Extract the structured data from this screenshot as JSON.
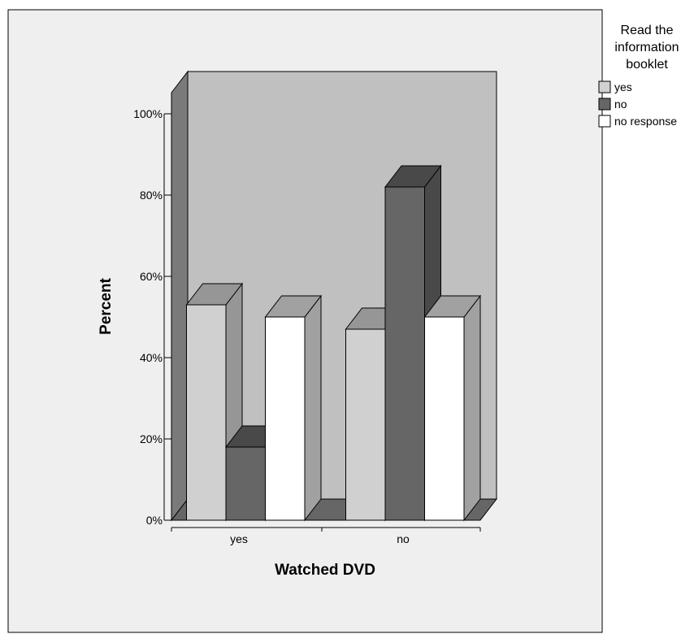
{
  "chart_data": {
    "type": "bar",
    "style": "3d-clustered",
    "categories": [
      "yes",
      "no"
    ],
    "series": [
      {
        "name": "yes",
        "values": [
          53,
          47
        ],
        "color": "#d0d0d0"
      },
      {
        "name": "no",
        "values": [
          18,
          82
        ],
        "color": "#666666"
      },
      {
        "name": "no response",
        "values": [
          50,
          50
        ],
        "color": "#ffffff"
      }
    ],
    "xlabel": "Watched DVD",
    "ylabel": "Percent",
    "y_ticks": [
      "0%",
      "20%",
      "40%",
      "60%",
      "80%",
      "100%"
    ],
    "ylim": [
      0,
      100
    ],
    "grid": false,
    "legend_title_lines": [
      "Read the",
      "information",
      "booklet"
    ],
    "legend_position": "top-right",
    "colors": {
      "plot_background": "#efefef",
      "back_wall": "#c0c0c0",
      "side_wall": "#7a7a7a",
      "floor": "#666666"
    }
  }
}
